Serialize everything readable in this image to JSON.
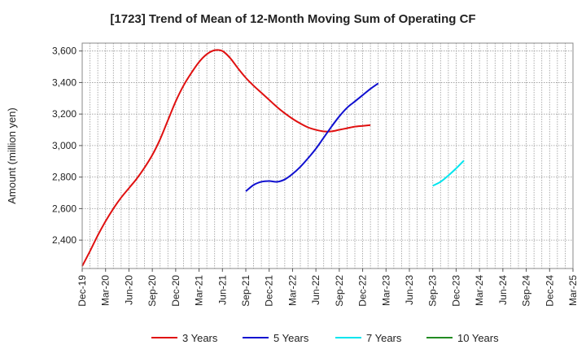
{
  "chart_data": {
    "type": "line",
    "title": "[1723]  Trend of Mean of 12-Month Moving Sum of Operating CF",
    "xlabel": "",
    "ylabel": "Amount (million yen)",
    "ylim": [
      2220,
      3650
    ],
    "yticks": [
      2400,
      2600,
      2800,
      3000,
      3200,
      3400,
      3600
    ],
    "ytick_labels": [
      "2,400",
      "2,600",
      "2,800",
      "3,000",
      "3,200",
      "3,400",
      "3,600"
    ],
    "x_start": "2019-12",
    "x_end": "2025-03",
    "xticks": [
      "Dec-19",
      "Mar-20",
      "Jun-20",
      "Sep-20",
      "Dec-20",
      "Mar-21",
      "Jun-21",
      "Sep-21",
      "Dec-21",
      "Mar-22",
      "Jun-22",
      "Sep-22",
      "Dec-22",
      "Mar-23",
      "Jun-23",
      "Sep-23",
      "Dec-23",
      "Mar-24",
      "Jun-24",
      "Sep-24",
      "Dec-24",
      "Mar-25"
    ],
    "grid": true,
    "legend_position": "bottom",
    "series": [
      {
        "name": "3 Years",
        "color": "#e01010",
        "start_index": 0,
        "values": [
          2235,
          2330,
          2430,
          2520,
          2600,
          2670,
          2730,
          2790,
          2860,
          2940,
          3040,
          3160,
          3280,
          3380,
          3460,
          3530,
          3580,
          3605,
          3600,
          3555,
          3490,
          3430,
          3380,
          3335,
          3290,
          3245,
          3205,
          3170,
          3140,
          3115,
          3100,
          3090,
          3090,
          3100,
          3110,
          3120,
          3125,
          3130
        ]
      },
      {
        "name": "5 Years",
        "color": "#1010d0",
        "start_index": 21,
        "values": [
          2710,
          2750,
          2770,
          2775,
          2770,
          2785,
          2820,
          2865,
          2920,
          2980,
          3050,
          3120,
          3185,
          3240,
          3280,
          3320,
          3360,
          3395
        ]
      },
      {
        "name": "7 Years",
        "color": "#00e5ee",
        "start_index": 45,
        "values": [
          2745,
          2770,
          2810,
          2855,
          2905
        ]
      },
      {
        "name": "10 Years",
        "color": "#228b22",
        "start_index": 0,
        "values": []
      }
    ]
  }
}
